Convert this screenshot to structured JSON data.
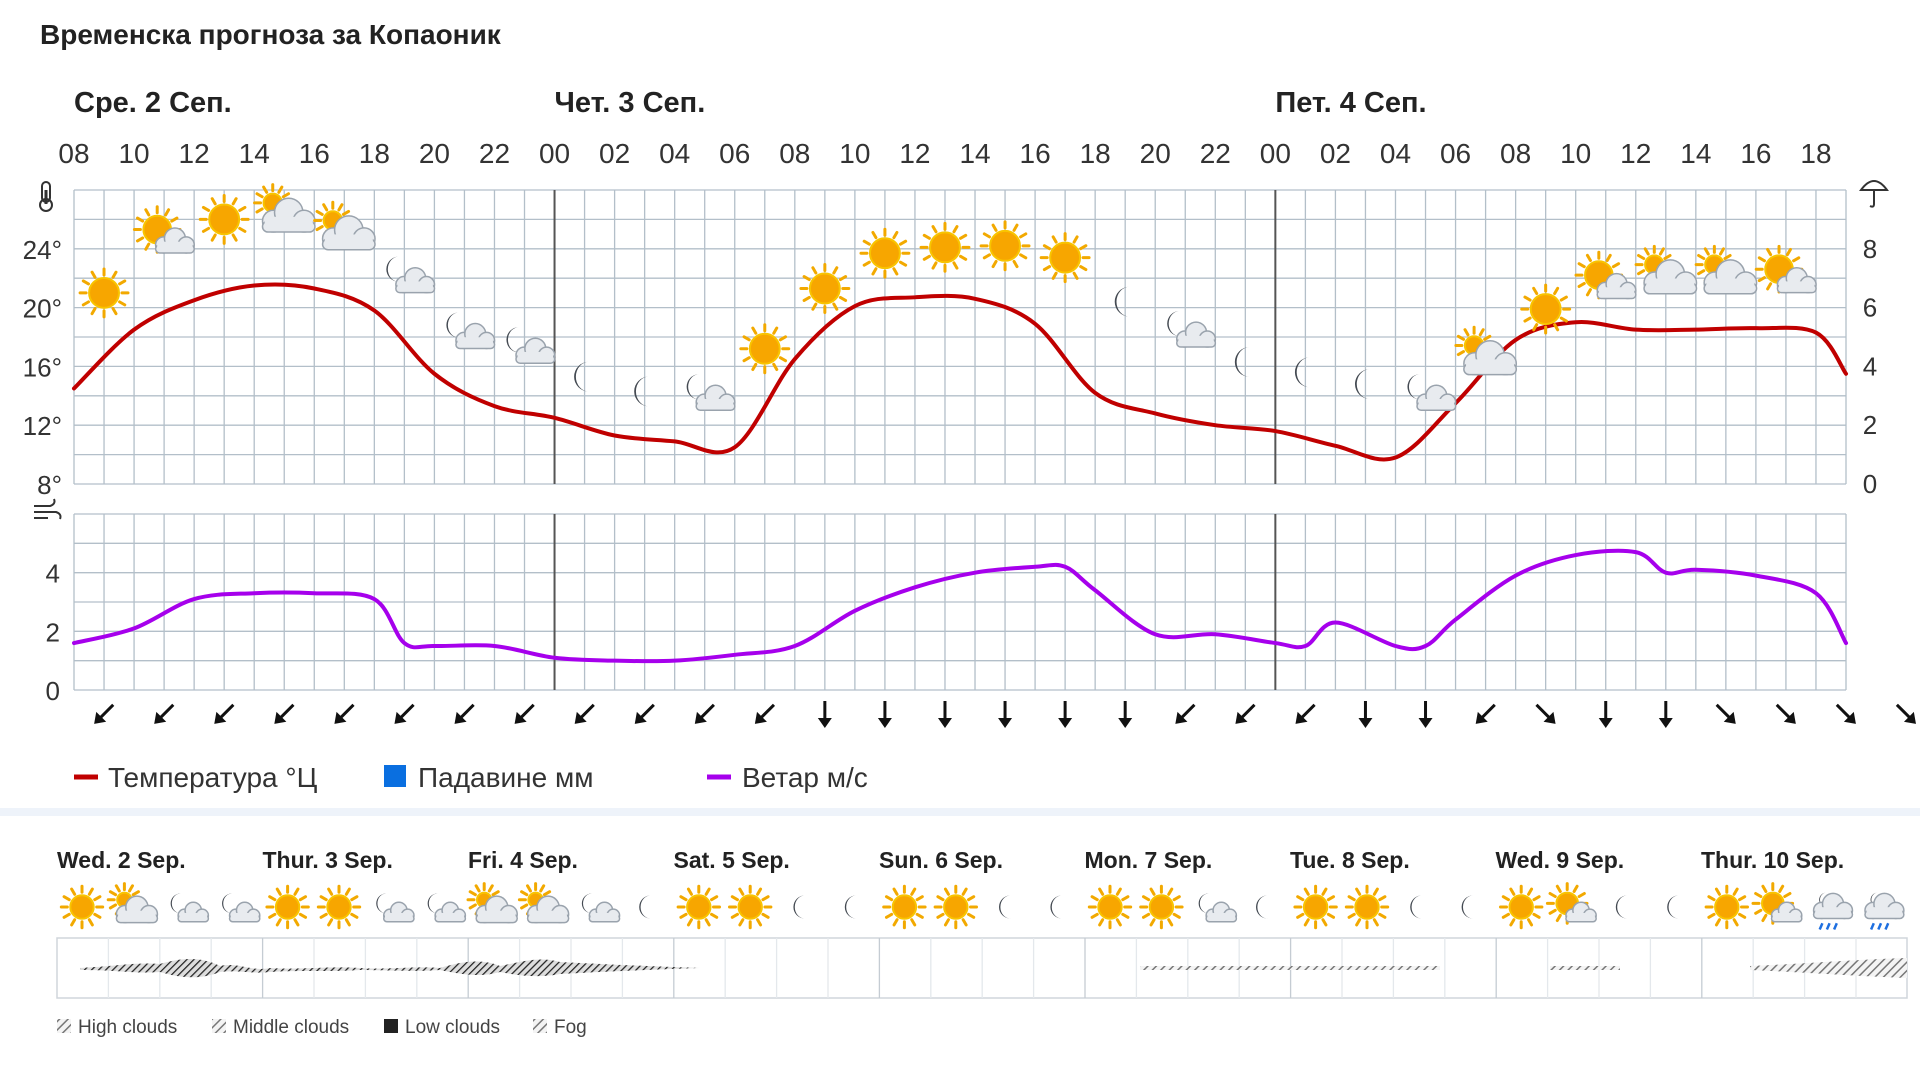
{
  "title": "Временска прогноза за Копаоник",
  "chart_data": {
    "type": "line",
    "day_labels": [
      {
        "label": "Сре. 2 Сеп.",
        "hour_index": 0
      },
      {
        "label": "Чет. 3 Сеп.",
        "hour_index": 16
      },
      {
        "label": "Пет. 4 Сеп.",
        "hour_index": 40
      }
    ],
    "hour_labels": [
      "08",
      "10",
      "12",
      "14",
      "16",
      "18",
      "20",
      "22",
      "00",
      "02",
      "04",
      "06",
      "08",
      "10",
      "12",
      "14",
      "16",
      "18",
      "20",
      "22",
      "00",
      "02",
      "04",
      "06",
      "08",
      "10",
      "12",
      "14",
      "16",
      "18"
    ],
    "temperature": {
      "unit": "°Ц",
      "ylim": [
        8,
        28
      ],
      "yticks": [
        "8°",
        "12°",
        "16°",
        "20°",
        "24°"
      ],
      "x": [
        0,
        2,
        4,
        6,
        8,
        10,
        12,
        14,
        16,
        18,
        20,
        22,
        24,
        26,
        28,
        30,
        32,
        34,
        36,
        38,
        40,
        42,
        44,
        46,
        48,
        50,
        52,
        54,
        56,
        58,
        59
      ],
      "y": [
        14.5,
        18.5,
        20.5,
        21.5,
        21.3,
        19.8,
        15.5,
        13.3,
        12.5,
        11.3,
        10.9,
        10.5,
        16.5,
        20.1,
        20.7,
        20.6,
        18.9,
        14.2,
        12.8,
        12.0,
        11.6,
        10.6,
        9.8,
        13.5,
        17.8,
        19.0,
        18.5,
        18.5,
        18.6,
        18.3,
        15.5
      ]
    },
    "precipitation": {
      "unit": "мм",
      "yticks": [
        "0",
        "2",
        "4",
        "6",
        "8"
      ]
    },
    "wind": {
      "unit": "м/с",
      "ylim": [
        0,
        6
      ],
      "yticks": [
        "0",
        "2",
        "4"
      ],
      "x": [
        0,
        2,
        4,
        6,
        8,
        10,
        11,
        12,
        14,
        16,
        18,
        20,
        22,
        24,
        26,
        28,
        30,
        32,
        33,
        34,
        36,
        38,
        40,
        41,
        42,
        44,
        45,
        46,
        48,
        50,
        52,
        53,
        54,
        56,
        58,
        59
      ],
      "y": [
        1.6,
        2.1,
        3.1,
        3.3,
        3.3,
        3.1,
        1.6,
        1.5,
        1.5,
        1.1,
        1.0,
        1.0,
        1.2,
        1.5,
        2.7,
        3.5,
        4.0,
        4.2,
        4.2,
        3.4,
        1.9,
        1.9,
        1.6,
        1.5,
        2.3,
        1.5,
        1.5,
        2.4,
        3.9,
        4.6,
        4.7,
        4.0,
        4.1,
        3.9,
        3.3,
        1.6
      ]
    },
    "wind_direction_icons": [
      "sw-arrow",
      "sw-arrow",
      "sw-arrow",
      "sw-arrow",
      "sw-arrow",
      "sw-arrow",
      "sw-arrow",
      "sw-arrow",
      "sw-arrow",
      "sw-arrow",
      "sw-arrow",
      "sw-arrow",
      "s-arrow",
      "s-arrow",
      "s-arrow",
      "s-arrow",
      "s-arrow",
      "s-arrow",
      "sw-arrow",
      "sw-arrow",
      "sw-arrow",
      "s-arrow",
      "s-arrow",
      "sw-arrow",
      "se-arrow",
      "s-arrow",
      "s-arrow",
      "se-arrow",
      "se-arrow",
      "se-arrow",
      "se-arrow"
    ],
    "weather_icons": [
      {
        "x": 1,
        "t": 21,
        "icon": "sun"
      },
      {
        "x": 3,
        "t": 25,
        "icon": "sun-cloud"
      },
      {
        "x": 5,
        "t": 26,
        "icon": "sun"
      },
      {
        "x": 7,
        "t": 26.5,
        "icon": "cloud-sun"
      },
      {
        "x": 9,
        "t": 25.3,
        "icon": "cloud-sun"
      },
      {
        "x": 11,
        "t": 22.3,
        "icon": "moon-cloud"
      },
      {
        "x": 13,
        "t": 18.5,
        "icon": "moon-cloud"
      },
      {
        "x": 15,
        "t": 17.5,
        "icon": "moon-cloud"
      },
      {
        "x": 17,
        "t": 15.3,
        "icon": "moon"
      },
      {
        "x": 19,
        "t": 14.3,
        "icon": "moon"
      },
      {
        "x": 21,
        "t": 14.3,
        "icon": "moon-cloud"
      },
      {
        "x": 23,
        "t": 17.2,
        "icon": "sun"
      },
      {
        "x": 25,
        "t": 21.3,
        "icon": "sun"
      },
      {
        "x": 27,
        "t": 23.7,
        "icon": "sun"
      },
      {
        "x": 29,
        "t": 24.1,
        "icon": "sun"
      },
      {
        "x": 31,
        "t": 24.2,
        "icon": "sun"
      },
      {
        "x": 33,
        "t": 23.4,
        "icon": "sun"
      },
      {
        "x": 35,
        "t": 20.4,
        "icon": "moon"
      },
      {
        "x": 37,
        "t": 18.6,
        "icon": "moon-cloud"
      },
      {
        "x": 39,
        "t": 16.3,
        "icon": "moon"
      },
      {
        "x": 41,
        "t": 15.6,
        "icon": "moon"
      },
      {
        "x": 43,
        "t": 14.8,
        "icon": "moon"
      },
      {
        "x": 45,
        "t": 14.3,
        "icon": "moon-cloud"
      },
      {
        "x": 47,
        "t": 16.8,
        "icon": "cloud-sun"
      },
      {
        "x": 49,
        "t": 19.9,
        "icon": "sun"
      },
      {
        "x": 51,
        "t": 21.9,
        "icon": "sun-cloud"
      },
      {
        "x": 53,
        "t": 22.3,
        "icon": "cloud-sun"
      },
      {
        "x": 55,
        "t": 22.3,
        "icon": "cloud-sun"
      },
      {
        "x": 57,
        "t": 22.3,
        "icon": "sun-cloud"
      }
    ]
  },
  "legend": {
    "temperature": "Температура °Ц",
    "precipitation": "Падавине мм",
    "wind": "Ветар м/с"
  },
  "colors": {
    "temperature": "#c00000",
    "precipitation": "#0a6fe0",
    "wind": "#a600ec",
    "grid": "#b3bfc9",
    "day_separator": "#555555"
  },
  "meteogram": {
    "days": [
      "Wed. 2 Sep.",
      "Thur. 3 Sep.",
      "Fri. 4 Sep.",
      "Sat. 5 Sep.",
      "Sun. 6 Sep.",
      "Mon. 7 Sep.",
      "Tue. 8 Sep.",
      "Wed. 9 Sep.",
      "Thur. 10 Sep."
    ],
    "icons": [
      "sun",
      "cloud-sun",
      "moon-cloud",
      "moon-cloud",
      "sun",
      "sun",
      "moon-cloud",
      "moon-cloud",
      "cloud-sun",
      "cloud-sun",
      "moon-cloud",
      "moon",
      "sun",
      "sun",
      "moon",
      "moon",
      "sun",
      "sun",
      "moon",
      "moon",
      "sun",
      "sun",
      "moon-cloud",
      "moon",
      "sun",
      "sun",
      "moon",
      "moon",
      "sun",
      "sun-cloud",
      "moon",
      "moon",
      "sun",
      "sun-cloud",
      "rain",
      "rain"
    ],
    "cloud_legend": [
      "High clouds",
      "Middle clouds",
      "Low clouds",
      "Fog"
    ]
  }
}
